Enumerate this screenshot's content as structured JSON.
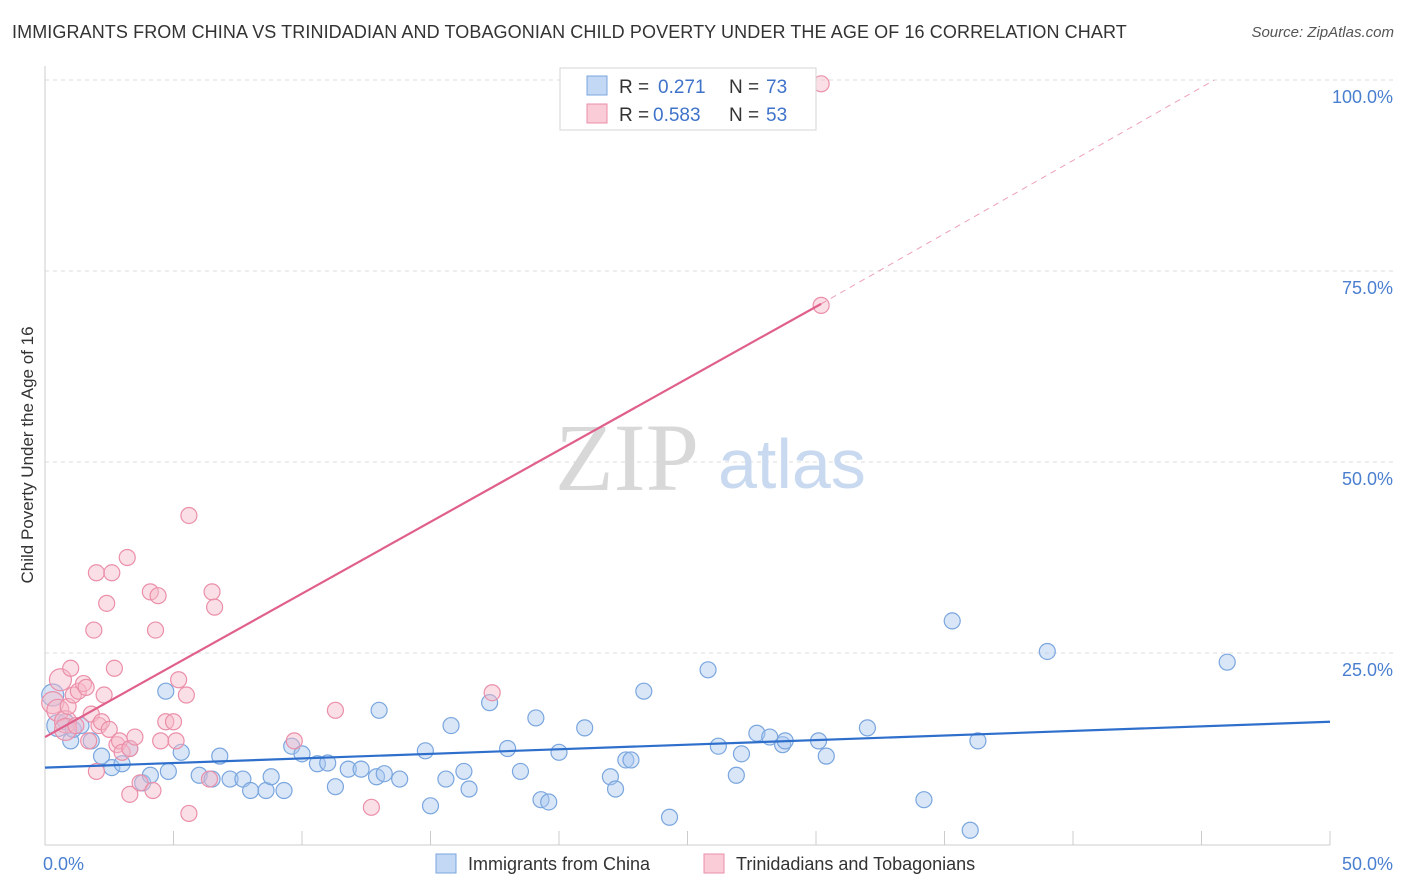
{
  "chart_data": {
    "type": "scatter",
    "title": "IMMIGRANTS FROM CHINA VS TRINIDADIAN AND TOBAGONIAN CHILD POVERTY UNDER THE AGE OF 16 CORRELATION CHART",
    "source": "Source: ZipAtlas.com",
    "ylabel": "Child Poverty Under the Age of 16",
    "xlabel": "",
    "xlim": [
      0,
      50
    ],
    "ylim": [
      0,
      100
    ],
    "x_tick_labels": [
      "0.0%",
      "50.0%"
    ],
    "y_ticks": [
      25,
      50,
      75,
      100
    ],
    "y_tick_labels": [
      "25.0%",
      "50.0%",
      "75.0%",
      "100.0%"
    ],
    "grid": true,
    "watermark": {
      "zip": "ZIP",
      "atlas": "atlas"
    },
    "legend": {
      "r_label": "R =",
      "n_label": "N =",
      "entries": [
        {
          "r": "0.271",
          "n": "73",
          "color": "#a9c8f0"
        },
        {
          "r": "0.583",
          "n": "53",
          "color": "#f7b7c8"
        }
      ]
    },
    "series": [
      {
        "name": "Immigrants from China",
        "color": "#a9c8f0",
        "stroke": "#7aa6de",
        "trend_color": "#2f6fcc",
        "trend": {
          "x0": 0,
          "y0": 10.0,
          "x1": 50,
          "y1": 16.0
        },
        "points": [
          [
            0.3,
            19.5
          ],
          [
            0.5,
            15.5
          ],
          [
            0.8,
            16
          ],
          [
            1.0,
            13.5
          ],
          [
            1.1,
            15
          ],
          [
            1.4,
            15.5
          ],
          [
            1.8,
            13.5
          ],
          [
            2.2,
            11.5
          ],
          [
            2.6,
            10
          ],
          [
            3.0,
            10.5
          ],
          [
            3.3,
            12.5
          ],
          [
            3.8,
            8
          ],
          [
            4.1,
            9
          ],
          [
            4.7,
            20
          ],
          [
            4.8,
            9.5
          ],
          [
            5.3,
            12
          ],
          [
            6.0,
            9
          ],
          [
            6.5,
            8.5
          ],
          [
            6.8,
            11.5
          ],
          [
            7.2,
            8.5
          ],
          [
            7.7,
            8.5
          ],
          [
            8.0,
            7
          ],
          [
            8.6,
            7
          ],
          [
            8.8,
            8.8
          ],
          [
            9.3,
            7
          ],
          [
            9.6,
            12.8
          ],
          [
            10.0,
            11.8
          ],
          [
            10.6,
            10.5
          ],
          [
            11.0,
            10.6
          ],
          [
            11.3,
            7.5
          ],
          [
            11.8,
            9.8
          ],
          [
            12.3,
            9.8
          ],
          [
            12.9,
            8.8
          ],
          [
            13.2,
            9.2
          ],
          [
            13.0,
            17.5
          ],
          [
            13.8,
            8.5
          ],
          [
            14.8,
            12.2
          ],
          [
            15.0,
            5
          ],
          [
            15.6,
            8.5
          ],
          [
            15.8,
            15.5
          ],
          [
            16.3,
            9.5
          ],
          [
            16.5,
            7.2
          ],
          [
            17.3,
            18.5
          ],
          [
            18.0,
            12.5
          ],
          [
            18.5,
            9.5
          ],
          [
            19.1,
            16.5
          ],
          [
            19.3,
            5.8
          ],
          [
            19.6,
            5.5
          ],
          [
            20.0,
            12
          ],
          [
            21.0,
            15.2
          ],
          [
            22.0,
            8.8
          ],
          [
            22.2,
            7.2
          ],
          [
            22.6,
            11
          ],
          [
            22.8,
            11
          ],
          [
            23.3,
            20
          ],
          [
            24.3,
            3.5
          ],
          [
            25.8,
            22.8
          ],
          [
            26.2,
            12.8
          ],
          [
            26.9,
            9
          ],
          [
            27.1,
            11.8
          ],
          [
            27.7,
            14.5
          ],
          [
            28.2,
            14
          ],
          [
            28.7,
            13
          ],
          [
            28.8,
            13.5
          ],
          [
            30.1,
            13.5
          ],
          [
            30.4,
            11.5
          ],
          [
            32.0,
            15.2
          ],
          [
            34.2,
            5.8
          ],
          [
            35.3,
            29.2
          ],
          [
            36.0,
            1.8
          ],
          [
            36.3,
            13.5
          ],
          [
            39.0,
            25.2
          ],
          [
            46.0,
            23.8
          ]
        ]
      },
      {
        "name": "Trinidadians and Tobagonians",
        "color": "#f7b7c8",
        "stroke": "#eb8fa9",
        "trend_color": "#e0608c",
        "trend": {
          "x0": 0,
          "y0": 14.0,
          "x1": 30.2,
          "y1": 70.7
        },
        "trend_dashed": {
          "x0": 30.2,
          "y0": 70.7,
          "x1": 45.5,
          "y1": 100
        },
        "points": [
          [
            0.3,
            18.5
          ],
          [
            0.5,
            17.5
          ],
          [
            0.6,
            21.5
          ],
          [
            0.8,
            16
          ],
          [
            0.8,
            15
          ],
          [
            0.9,
            18
          ],
          [
            1.0,
            23
          ],
          [
            1.1,
            19.5
          ],
          [
            1.2,
            15.5
          ],
          [
            1.3,
            20
          ],
          [
            1.5,
            21
          ],
          [
            1.6,
            20.5
          ],
          [
            1.7,
            13.5
          ],
          [
            1.8,
            17
          ],
          [
            1.9,
            28
          ],
          [
            2.0,
            9.5
          ],
          [
            2.0,
            35.5
          ],
          [
            2.1,
            15.5
          ],
          [
            2.2,
            16
          ],
          [
            2.3,
            19.5
          ],
          [
            2.4,
            31.5
          ],
          [
            2.5,
            15
          ],
          [
            2.6,
            35.5
          ],
          [
            2.7,
            23
          ],
          [
            2.8,
            13
          ],
          [
            2.9,
            13.5
          ],
          [
            3.0,
            12
          ],
          [
            3.2,
            37.5
          ],
          [
            3.3,
            12.5
          ],
          [
            3.3,
            6.5
          ],
          [
            3.5,
            14
          ],
          [
            3.7,
            8
          ],
          [
            4.1,
            33
          ],
          [
            4.2,
            7
          ],
          [
            4.3,
            28
          ],
          [
            4.4,
            32.5
          ],
          [
            4.5,
            13.5
          ],
          [
            4.7,
            16
          ],
          [
            5.0,
            16
          ],
          [
            5.1,
            13.5
          ],
          [
            5.2,
            21.5
          ],
          [
            5.5,
            19.5
          ],
          [
            5.6,
            43
          ],
          [
            5.6,
            4
          ],
          [
            6.4,
            8.5
          ],
          [
            6.5,
            33
          ],
          [
            6.6,
            31
          ],
          [
            9.7,
            13.5
          ],
          [
            11.3,
            17.5
          ],
          [
            12.7,
            4.8
          ],
          [
            17.4,
            19.8
          ],
          [
            30.2,
            70.5
          ],
          [
            30.2,
            99.5
          ]
        ]
      }
    ]
  }
}
